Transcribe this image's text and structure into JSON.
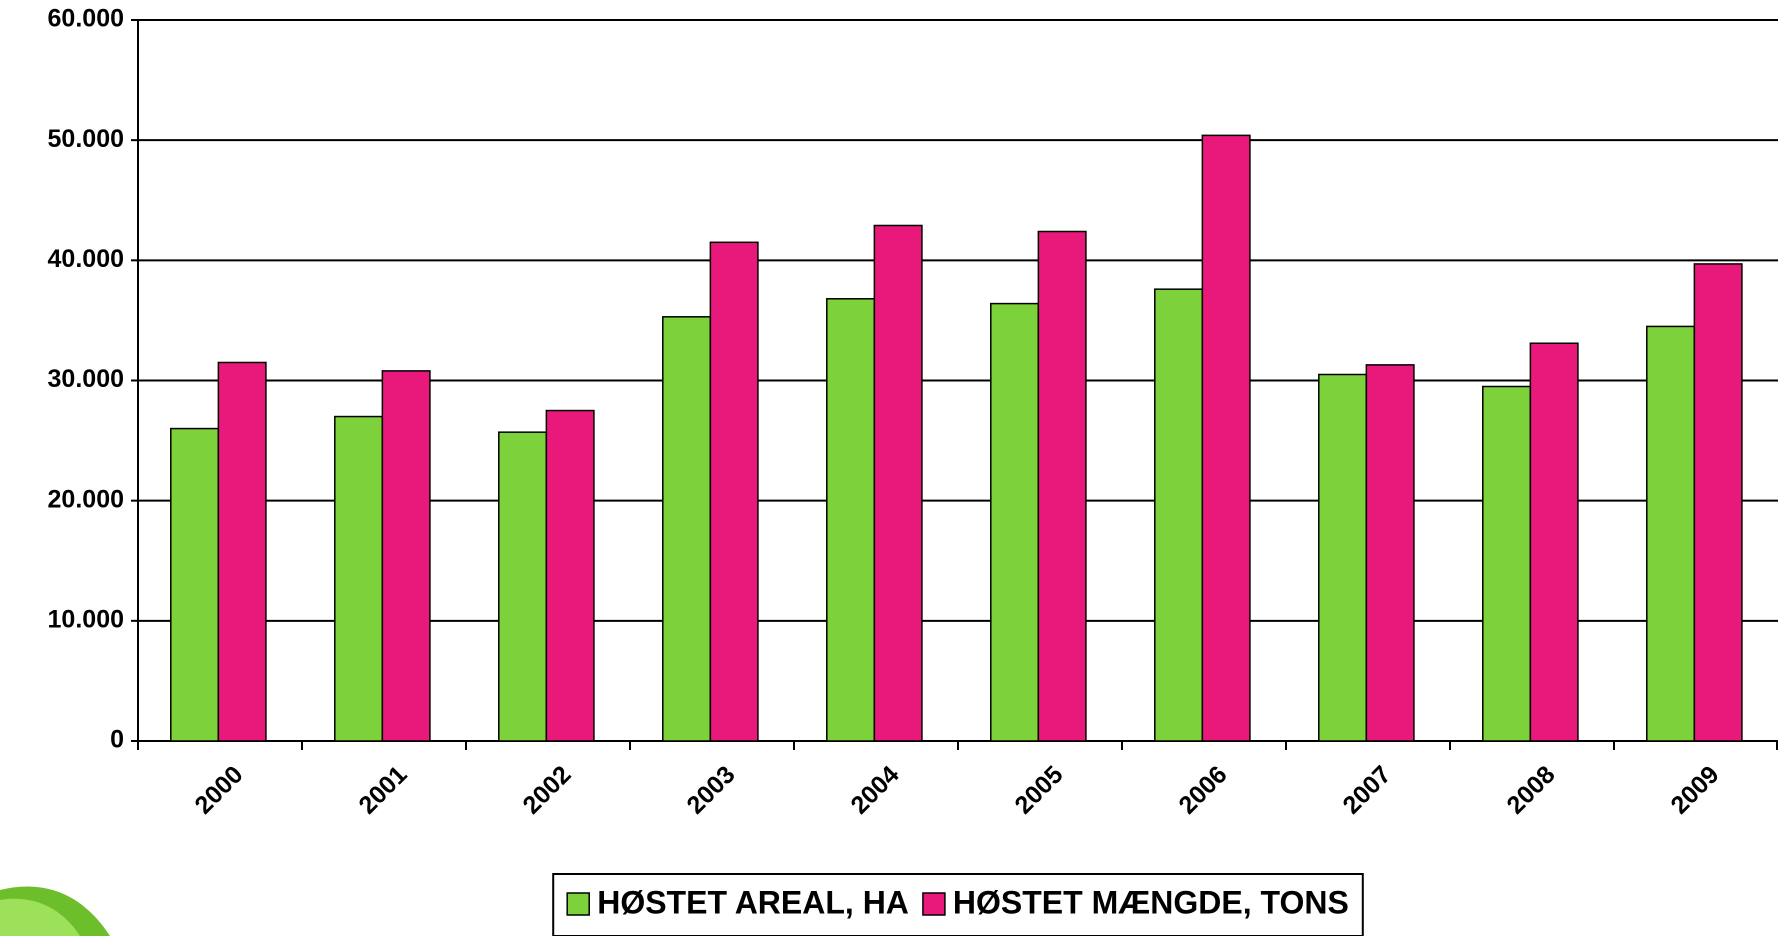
{
  "chart_data": {
    "type": "bar",
    "categories": [
      "2000",
      "2001",
      "2002",
      "2003",
      "2004",
      "2005",
      "2006",
      "2007",
      "2008",
      "2009"
    ],
    "series": [
      {
        "name": "HØSTET AREAL, HA",
        "color": "#7dd13b",
        "values": [
          26000,
          27000,
          25700,
          35300,
          36800,
          36400,
          37600,
          30500,
          29500,
          34500
        ]
      },
      {
        "name": "HØSTET MÆNGDE, TONS",
        "color": "#e8197a",
        "values": [
          31500,
          30800,
          27500,
          41500,
          42900,
          42400,
          50400,
          31300,
          33100,
          39700
        ]
      }
    ],
    "ylim": [
      0,
      60000
    ],
    "yticks": [
      0,
      {
        "value": 10000,
        "label": "10.000"
      },
      {
        "value": 20000,
        "label": "20.000"
      },
      {
        "value": 30000,
        "label": "30.000"
      },
      {
        "value": 40000,
        "label": "40.000"
      },
      {
        "value": 50000,
        "label": "50.000"
      },
      {
        "value": 60000,
        "label": "60.000"
      }
    ],
    "grid": true,
    "legend": "bottom"
  }
}
